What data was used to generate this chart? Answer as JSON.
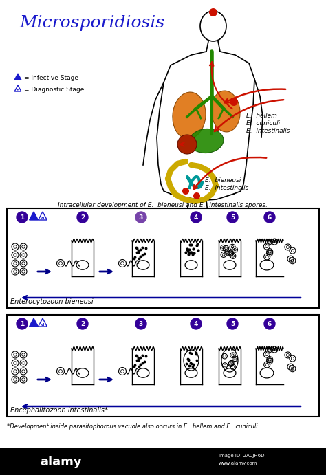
{
  "title": "Microsporidiosis",
  "title_color": "#1a1acc",
  "title_fontsize": 18,
  "bg_color": "#ffffff",
  "legend_infective": "= Infective Stage",
  "legend_diagnostic": "= Diagnostic Stage",
  "subtitle": "Intracellular development of E.  bieneusi and E.  intestinalis spores.",
  "label1": "Enterocytozoon bieneusi",
  "label2": "Encephalitozoon intestinalis*",
  "footnote": "*Development inside parasitophorous vacuole also occurs in E.  hellem and E.  cuniculi.",
  "species_right1": "E.  hellem",
  "species_right2": "E.  cuniculi",
  "species_right3": "E.  intestinalis",
  "species_lower1": "E.  bieneusi",
  "species_lower2": "E.  intestinalis",
  "dark_purple": "#330099",
  "navy": "#000080",
  "red": "#cc1100",
  "orange": "#e07818",
  "green": "#228800",
  "teal": "#009999",
  "yellow": "#ccaa00",
  "brown_red": "#aa2200"
}
